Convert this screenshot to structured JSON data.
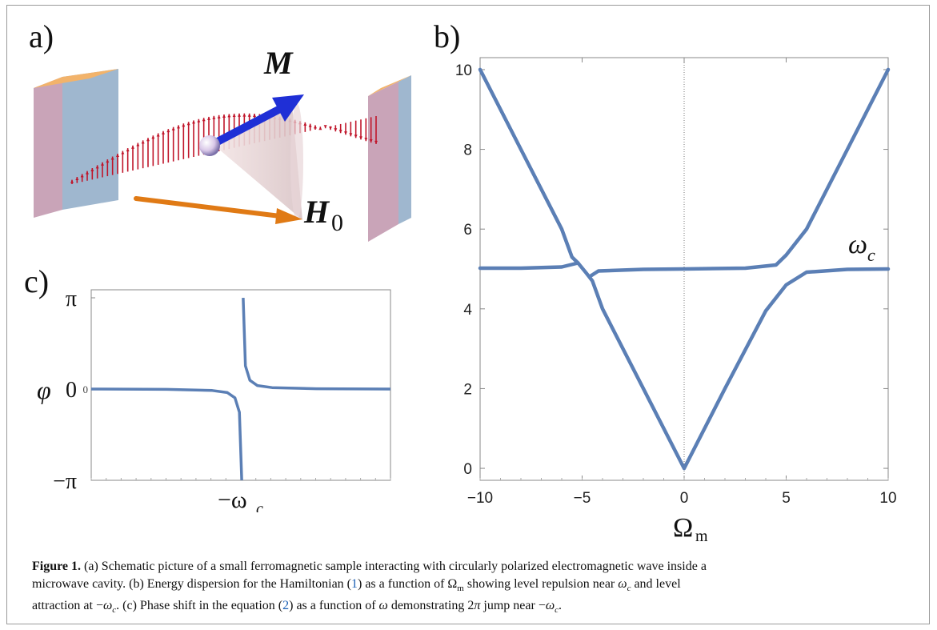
{
  "panels": {
    "a": {
      "label": "a)",
      "vector_label": "M",
      "field_label": "H",
      "field_subscript": "0"
    },
    "b": {
      "label": "b)",
      "xlabel": "Ω",
      "xlabel_sub": "m",
      "curve_label": "ω",
      "curve_label_sub": "c"
    },
    "c": {
      "label": "c)",
      "ylabel": "φ",
      "x_tick": "−ω",
      "x_tick_sub": "c",
      "y_ticks": [
        "π",
        "0",
        "−π"
      ]
    }
  },
  "chart_data": [
    {
      "panel": "b",
      "type": "line",
      "xlabel": "Ωm",
      "ylabel": "",
      "xlim": [
        -10,
        10
      ],
      "ylim": [
        -0.3,
        10.3
      ],
      "x_ticks": [
        "-10",
        "-5",
        "0",
        "5",
        "10"
      ],
      "y_ticks": [
        "0",
        "2",
        "4",
        "6",
        "8",
        "10"
      ],
      "annotations": [
        "ωc"
      ],
      "vertical_reference_line": 0,
      "series": [
        {
          "points": [
            [
              -10,
              10.0
            ],
            [
              -8,
              8.0
            ],
            [
              -6,
              6.0
            ],
            [
              -5.5,
              5.3
            ],
            [
              -5.2,
              5.15
            ],
            [
              -6,
              5.05
            ],
            [
              -8,
              5.02
            ],
            [
              -10,
              5.02
            ]
          ]
        },
        {
          "points": [
            [
              -5.2,
              5.15
            ],
            [
              -4.8,
              4.9
            ],
            [
              -4.5,
              4.7
            ],
            [
              -4,
              4.0
            ],
            [
              -2,
              2.0
            ],
            [
              0,
              0.0
            ],
            [
              2,
              2.0
            ],
            [
              4,
              3.95
            ],
            [
              5,
              4.6
            ],
            [
              6,
              4.92
            ],
            [
              8,
              4.99
            ],
            [
              10,
              5.0
            ]
          ]
        },
        {
          "points": [
            [
              -4.6,
              4.82
            ],
            [
              -4.2,
              4.95
            ],
            [
              -2,
              4.99
            ],
            [
              0,
              5.0
            ],
            [
              3,
              5.02
            ],
            [
              4.5,
              5.1
            ],
            [
              5,
              5.35
            ],
            [
              6,
              6.0
            ],
            [
              8,
              8.0
            ],
            [
              10,
              10.0
            ]
          ]
        }
      ]
    },
    {
      "panel": "c",
      "type": "line",
      "ylabel": "φ",
      "x_ticks": [
        "−ωc"
      ],
      "y_ticks": [
        "π",
        "0",
        "−π"
      ],
      "series": [
        {
          "points": [
            [
              -1.0,
              0.0
            ],
            [
              -0.5,
              -0.01
            ],
            [
              -0.2,
              -0.05
            ],
            [
              -0.1,
              -0.12
            ],
            [
              -0.05,
              -0.3
            ],
            [
              -0.02,
              -0.8
            ],
            [
              -0.005,
              -3.14
            ]
          ]
        },
        {
          "points": [
            [
              0.005,
              3.14
            ],
            [
              0.02,
              0.8
            ],
            [
              0.05,
              0.3
            ],
            [
              0.1,
              0.12
            ],
            [
              0.2,
              0.05
            ],
            [
              0.5,
              0.01
            ],
            [
              1.0,
              0.0
            ]
          ]
        }
      ]
    }
  ],
  "caption": {
    "figure_label": "Figure 1.",
    "line1": "(a) Schematic picture of a small ferromagnetic sample interacting with circularly polarized electromagnetic wave inside a",
    "line2_a": "microwave cavity. (b) Energy dispersion for the Hamiltonian (",
    "ref1": "1",
    "line2_b": ") as a function of Ω",
    "line2_sub": "m",
    "line2_c": " showing level repulsion near ",
    "omega_c": "ω",
    "omega_c_sub": "c",
    "line2_d": " and level",
    "line3_a": "attraction at −",
    "line3_b": ". (c) Phase shift in the equation (",
    "ref2": "2",
    "line3_c": ") as a function of ",
    "omega": "ω",
    "line3_d": " demonstrating 2",
    "pi": "π",
    "line3_e": " jump near −",
    "line3_f": "."
  },
  "colors": {
    "curve": "#5b7fb5",
    "wave": "#c0152a",
    "field_arrow": "#e07a15",
    "vector_arrow": "#1f2fd6"
  }
}
